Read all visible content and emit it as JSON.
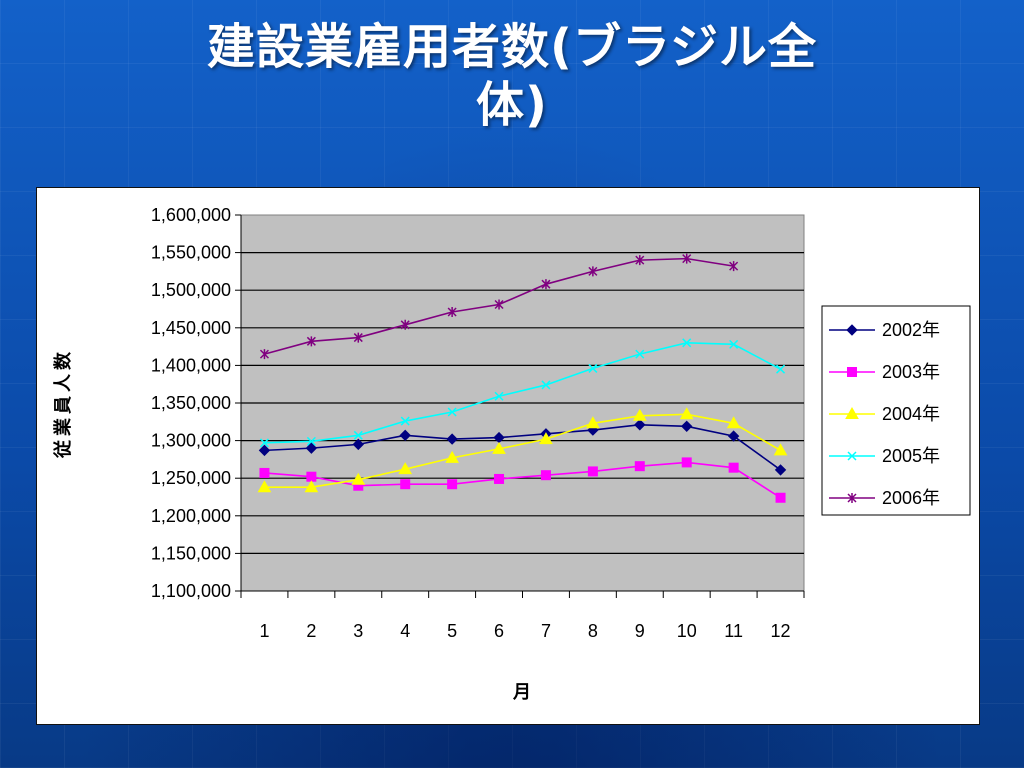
{
  "slide": {
    "title": "建設業雇用者数(ブラジル全\n体)"
  },
  "chart_data": {
    "type": "line",
    "title": "",
    "xlabel": "月",
    "ylabel": "従業員人数",
    "categories": [
      "1",
      "2",
      "3",
      "4",
      "5",
      "6",
      "7",
      "8",
      "9",
      "10",
      "11",
      "12"
    ],
    "ylim": [
      1100000,
      1600000
    ],
    "yticks": [
      "1,100,000",
      "1,150,000",
      "1,200,000",
      "1,250,000",
      "1,300,000",
      "1,350,000",
      "1,400,000",
      "1,450,000",
      "1,500,000",
      "1,550,000",
      "1,600,000"
    ],
    "grid": true,
    "legend_position": "right",
    "series": [
      {
        "name": "2002年",
        "color": "#000080",
        "marker": "diamond",
        "values": [
          1287000,
          1290000,
          1295000,
          1307000,
          1302000,
          1304000,
          1309000,
          1314000,
          1321000,
          1319000,
          1306000,
          1261000
        ]
      },
      {
        "name": "2003年",
        "color": "#ff00ff",
        "marker": "square",
        "values": [
          1257000,
          1252000,
          1240000,
          1242000,
          1242000,
          1249000,
          1254000,
          1259000,
          1266000,
          1271000,
          1264000,
          1224000
        ]
      },
      {
        "name": "2004年",
        "color": "#ffff00",
        "marker": "triangle",
        "values": [
          1238000,
          1238000,
          1248000,
          1262000,
          1277000,
          1289000,
          1302000,
          1323000,
          1333000,
          1335000,
          1323000,
          1287000
        ]
      },
      {
        "name": "2005年",
        "color": "#00ffff",
        "marker": "x",
        "values": [
          1297000,
          1299000,
          1307000,
          1326000,
          1338000,
          1359000,
          1374000,
          1396000,
          1415000,
          1430000,
          1428000,
          1395000
        ]
      },
      {
        "name": "2006年",
        "color": "#800080",
        "marker": "asterisk",
        "values": [
          1415000,
          1432000,
          1437000,
          1454000,
          1471000,
          1481000,
          1508000,
          1525000,
          1540000,
          1542000,
          1532000,
          null
        ]
      }
    ]
  }
}
